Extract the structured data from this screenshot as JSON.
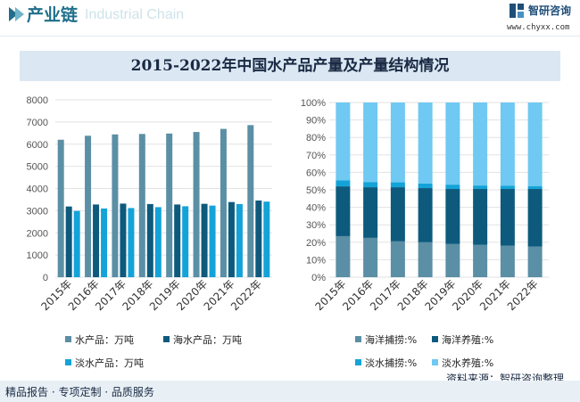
{
  "header": {
    "title": "产业链",
    "watermark": "Industrial Chain",
    "logo_name": "智研咨询",
    "logo_url": "www.chyxx.com"
  },
  "chart_title": "2015-2022年中国水产品产量及产量结构情况",
  "colors": {
    "total": "#5b8fa5",
    "seawater": "#0d5a7d",
    "freshwater": "#14a3d8",
    "sea_capture": "#5b8fa5",
    "sea_culture": "#0d5a7d",
    "fresh_capture": "#14a3d8",
    "fresh_culture": "#6fc9f2",
    "accent": "#1f6f8b"
  },
  "chart_data": [
    {
      "type": "bar",
      "categories": [
        "2015年",
        "2016年",
        "2017年",
        "2018年",
        "2019年",
        "2020年",
        "2021年",
        "2022年"
      ],
      "series": [
        {
          "name": "水产品：万吨",
          "values": [
            6200,
            6380,
            6440,
            6460,
            6480,
            6550,
            6690,
            6860
          ]
        },
        {
          "name": "海水产品：万吨",
          "values": [
            3190,
            3280,
            3320,
            3300,
            3280,
            3310,
            3390,
            3460
          ]
        },
        {
          "name": "淡水产品：万吨",
          "values": [
            2990,
            3100,
            3120,
            3160,
            3200,
            3230,
            3300,
            3410
          ]
        }
      ],
      "yticks": [
        "0",
        "1000",
        "2000",
        "3000",
        "4000",
        "5000",
        "6000",
        "7000",
        "8000"
      ],
      "ylim": [
        0,
        8000
      ],
      "legend_position": "bottom"
    },
    {
      "type": "bar",
      "stacked": true,
      "categories": [
        "2015年",
        "2016年",
        "2017年",
        "2018年",
        "2019年",
        "2020年",
        "2021年",
        "2022年"
      ],
      "series": [
        {
          "name": "海洋捕捞:%",
          "values": [
            23.5,
            22.5,
            20.5,
            20.0,
            19.0,
            18.5,
            18.0,
            17.5
          ]
        },
        {
          "name": "海洋养殖:%",
          "values": [
            28.5,
            29.0,
            31.0,
            31.0,
            31.5,
            32.0,
            32.5,
            33.0
          ]
        },
        {
          "name": "淡水捕捞:%",
          "values": [
            3.5,
            3.0,
            2.8,
            2.6,
            2.5,
            2.0,
            1.8,
            1.7
          ]
        },
        {
          "name": "淡水养殖:%",
          "values": [
            44.5,
            45.5,
            45.7,
            46.4,
            47.0,
            47.5,
            47.7,
            47.8
          ]
        }
      ],
      "yticks": [
        "0%",
        "10%",
        "20%",
        "30%",
        "40%",
        "50%",
        "60%",
        "70%",
        "80%",
        "90%",
        "100%"
      ],
      "ylim": [
        0,
        100
      ],
      "legend_position": "bottom"
    }
  ],
  "footer": {
    "left": "精品报告 · 专项定制 · 品质服务",
    "source": "资料来源：智研咨询整理"
  }
}
